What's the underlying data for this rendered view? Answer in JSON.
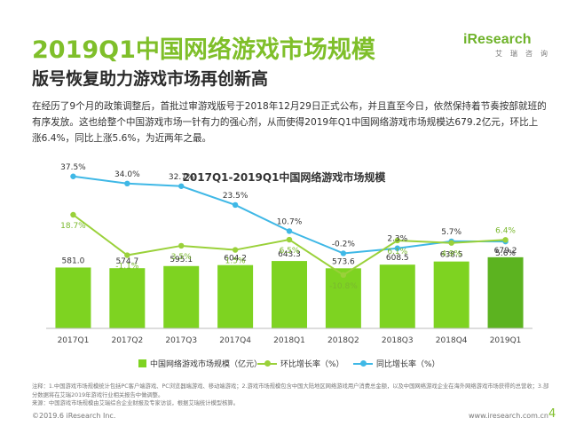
{
  "header": {
    "title": "2019Q1中国网络游戏市场规模",
    "subtitle": "版号恢复助力游戏市场再创新高",
    "logo_text": "iResearch",
    "logo_sub": "艾瑞咨询"
  },
  "paragraph": "在经历了9个月的政策调整后，首批过审游戏版号于2018年12月29日正式公布，并且直至今日，依然保持着节奏按部就班的有序发放。这也给整个中国游戏市场一针有力的强心剂，从而使得2019年Q1中国网络游戏市场规模达679.2亿元，环比上涨6.4%，同比上涨5.6%，为近两年之最。",
  "chart_data": {
    "type": "bar",
    "title": "2017Q1-2019Q1中国网络游戏市场规模",
    "categories": [
      "2017Q1",
      "2017Q2",
      "2017Q3",
      "2017Q4",
      "2018Q1",
      "2018Q2",
      "2018Q3",
      "2018Q4",
      "2019Q1"
    ],
    "series": [
      {
        "name": "中国网络游戏市场规模（亿元）",
        "kind": "bar",
        "values": [
          581.0,
          574.7,
          595.1,
          604.2,
          643.3,
          573.6,
          608.5,
          638.5,
          679.2
        ],
        "labels": [
          "581.0",
          "574.7",
          "595.1",
          "604.2",
          "643.3",
          "573.6",
          "608.5",
          "638.5",
          "679.2"
        ]
      },
      {
        "name": "环比增长率（%）",
        "kind": "line",
        "values": [
          18.7,
          -1.1,
          3.5,
          1.5,
          6.5,
          -10.8,
          6.1,
          4.9,
          6.4
        ],
        "labels": [
          "18.7%",
          "-1.1%",
          "3.5%",
          "1.5%",
          "6.5%",
          "-10.8%",
          "6.1%",
          "4.9%",
          "6.4%"
        ]
      },
      {
        "name": "同比增长率（%）",
        "kind": "line",
        "values": [
          37.5,
          34.0,
          32.7,
          23.5,
          10.7,
          -0.2,
          2.3,
          5.7,
          5.6
        ],
        "labels": [
          "37.5%",
          "34.0%",
          "32.7%",
          "23.5%",
          "10.7%",
          "-0.2%",
          "2.3%",
          "5.7%",
          "5.6%"
        ]
      }
    ],
    "colors": {
      "bar": "#7ed321",
      "bar_highlight": "#5cb320",
      "mom_line": "#9ad13a",
      "yoy_line": "#3fb8e6",
      "label": "#333333",
      "mom_label": "#7ab82e"
    },
    "ylim_bar": [
      0,
      1000
    ],
    "ylim_line": [
      -20,
      45
    ],
    "grid": false,
    "legend_position": "bottom"
  },
  "notes": [
    "注释：1.中国游戏市场规模统计包括PC客户端游戏、PC浏览器端游戏、移动端游戏；2.游戏市场规模包含中国大陆地区网络游戏用户消费总金额，以及中国网络游戏企业在海外网络游戏市场获得的总营收；3.部分数据将在艾瑞2019年游戏行业相关报告中做调整。",
    "来源：中国游戏市场规模由艾瑞综合企业财报及专家访谈，根据艾瑞统计模型核算。"
  ],
  "footer": {
    "copyright": "©2019.6 iResearch Inc.",
    "url": "www.iresearch.com.cn",
    "page": "4"
  }
}
